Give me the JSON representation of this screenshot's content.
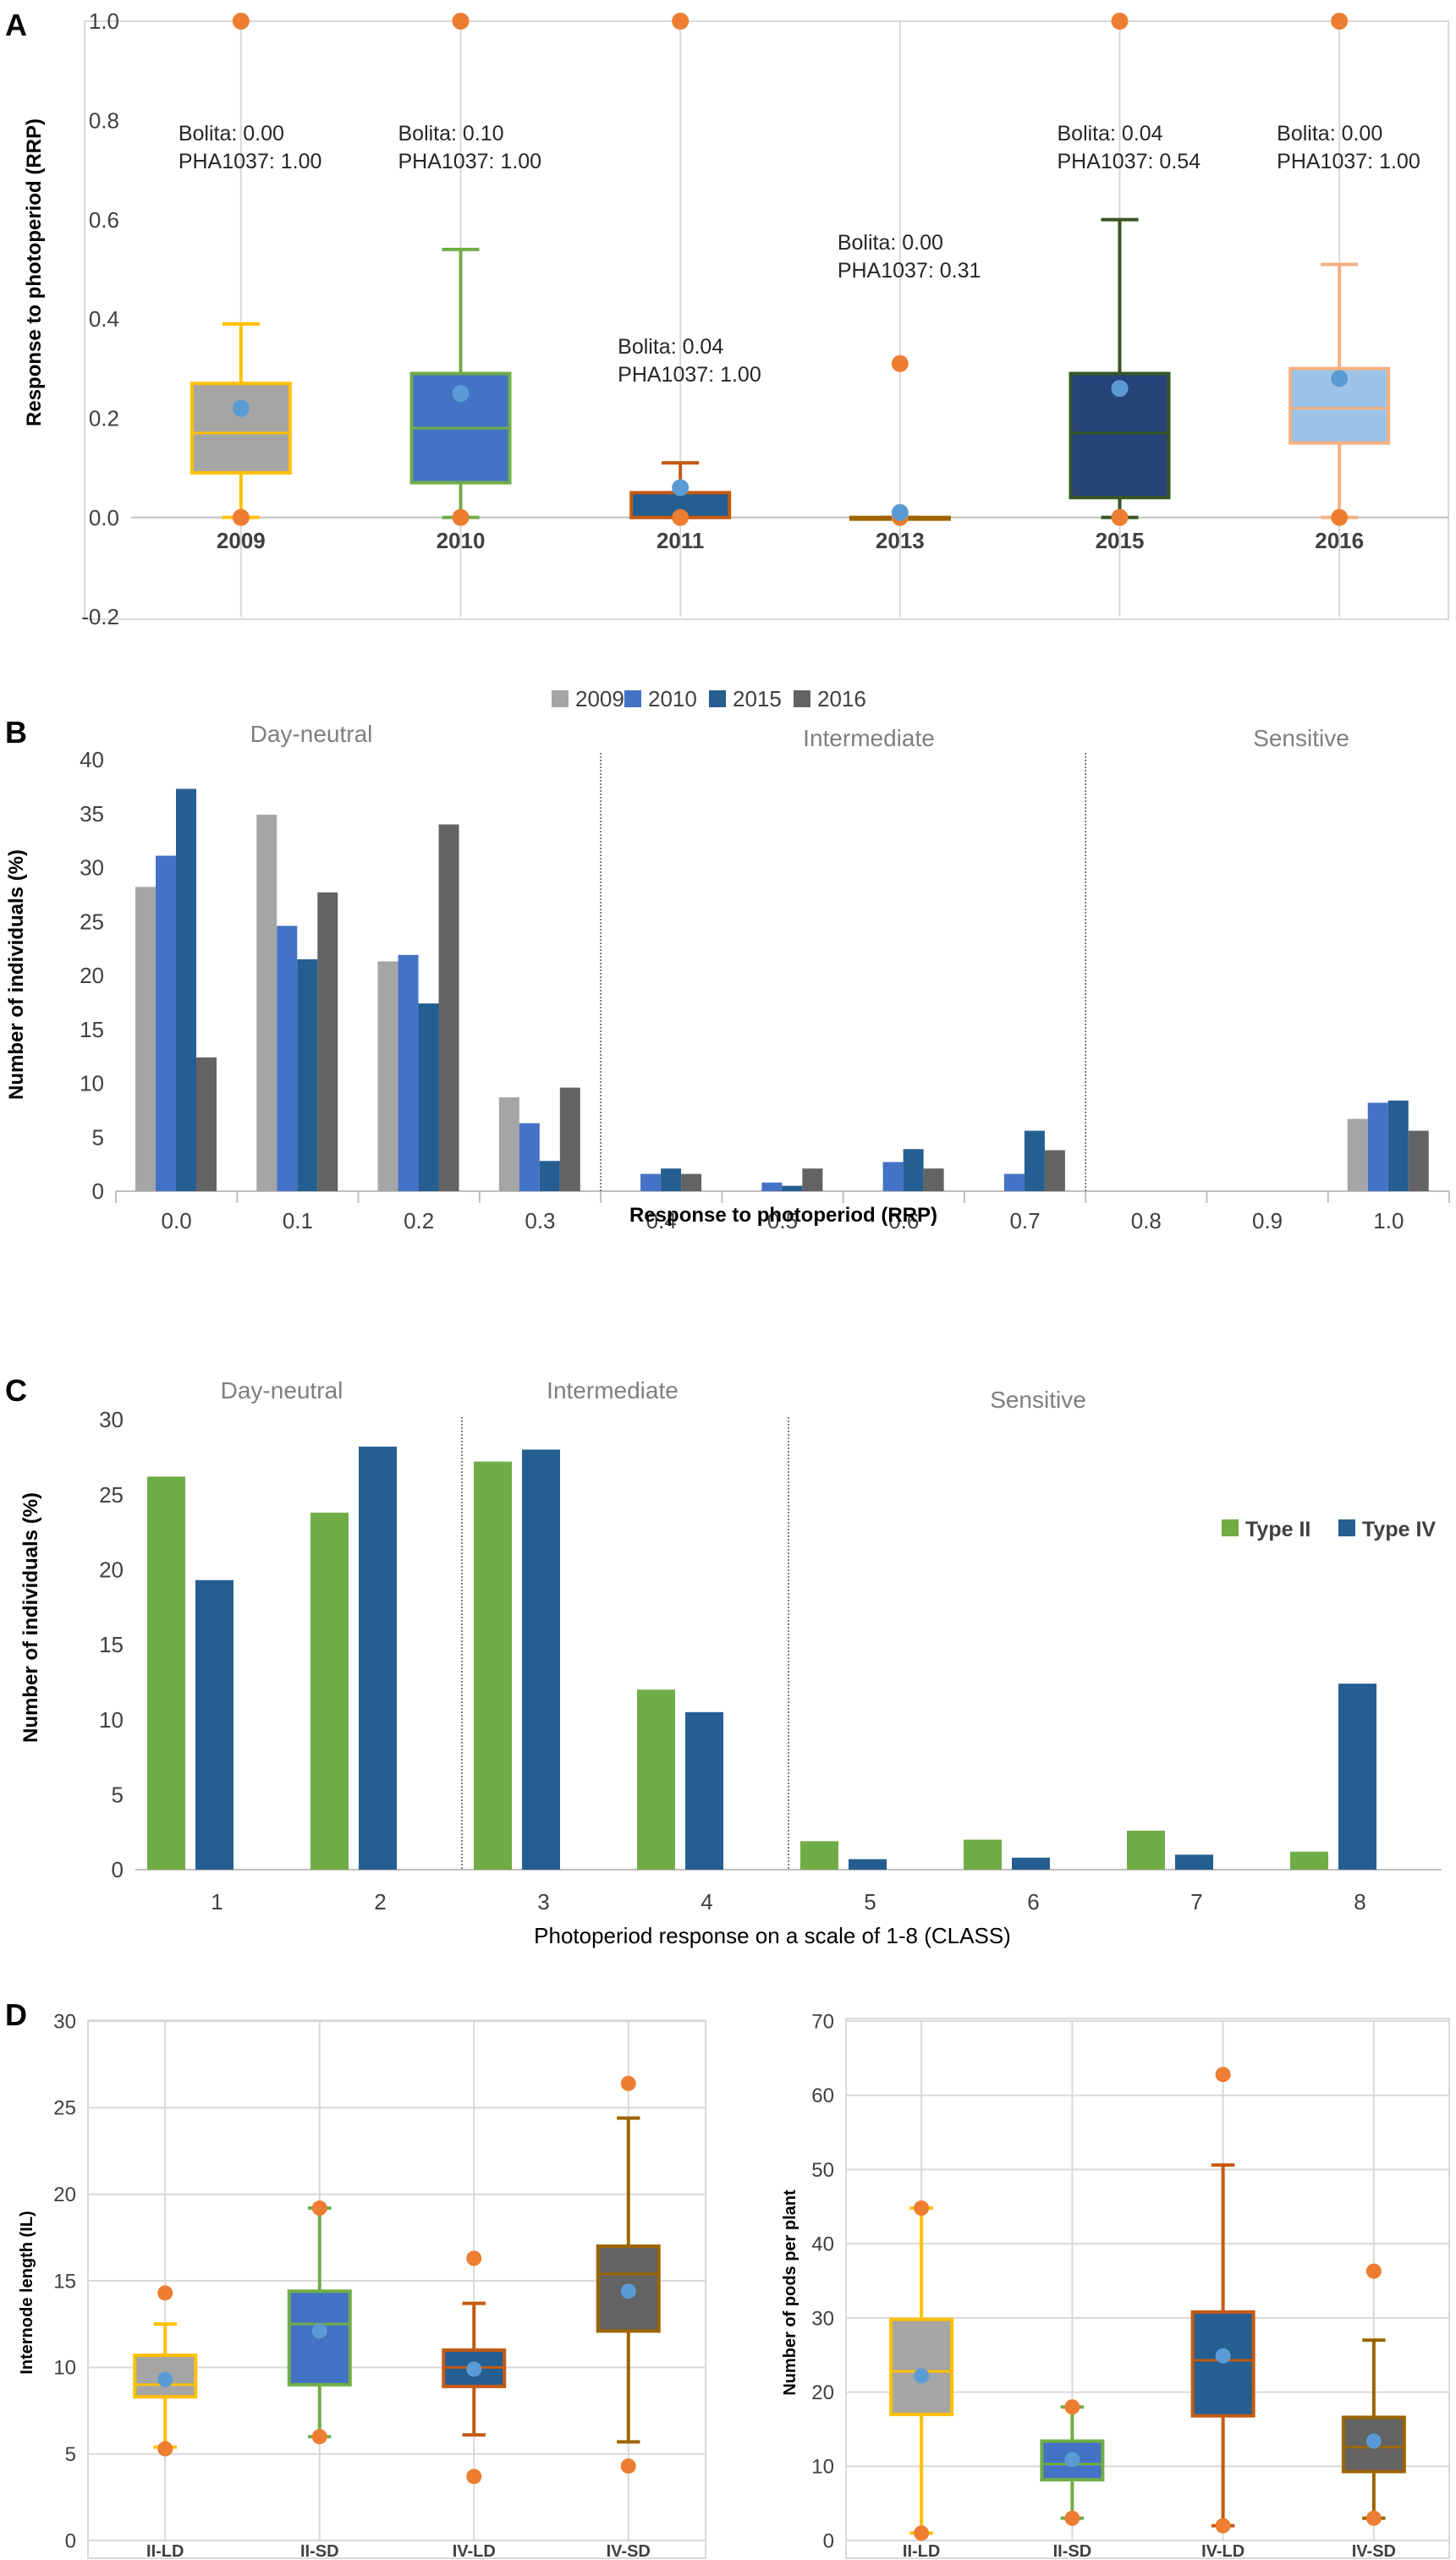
{
  "chart_data": [
    {
      "panel": "A",
      "type": "box",
      "ylabel": "Response to photoperiod (RRP)",
      "ylim": [
        -0.2,
        1.0
      ],
      "yticks": [
        -0.2,
        0.0,
        0.2,
        0.4,
        0.6,
        0.8,
        1.0
      ],
      "ytick_labels": [
        "-0.2",
        "0.0",
        "0.2",
        "0.4",
        "0.6",
        "0.8",
        "1.0"
      ],
      "categories": [
        "2009",
        "2010",
        "2011",
        "2013",
        "2015",
        "2016"
      ],
      "boxes": [
        {
          "label": "2009",
          "min": 0.0,
          "q1": 0.09,
          "median": 0.17,
          "q3": 0.27,
          "max": 0.39,
          "mean": 0.22,
          "outliers": [
            1.0,
            0.0
          ],
          "fill": "#a5a5a5",
          "edge": "#ffc000"
        },
        {
          "label": "2010",
          "min": 0.0,
          "q1": 0.07,
          "median": 0.18,
          "q3": 0.29,
          "max": 0.54,
          "mean": 0.25,
          "outliers": [
            1.0,
            0.0
          ],
          "fill": "#4472c4",
          "edge": "#70ad47"
        },
        {
          "label": "2011",
          "min": 0.0,
          "q1": 0.0,
          "median": 0.0,
          "q3": 0.05,
          "max": 0.11,
          "mean": 0.06,
          "outliers": [
            1.0,
            0.0
          ],
          "fill": "#255e91",
          "edge": "#c55a11"
        },
        {
          "label": "2013",
          "min": 0.0,
          "q1": 0.0,
          "median": 0.0,
          "q3": 0.0,
          "max": 0.0,
          "mean": 0.01,
          "outliers": [
            0.31,
            0.0
          ],
          "fill": "#255e91",
          "edge": "#9c6500"
        },
        {
          "label": "2015",
          "min": 0.0,
          "q1": 0.04,
          "median": 0.17,
          "q3": 0.29,
          "max": 0.6,
          "mean": 0.26,
          "outliers": [
            1.0,
            0.0
          ],
          "fill": "#264478",
          "edge": "#375623"
        },
        {
          "label": "2016",
          "min": 0.0,
          "q1": 0.15,
          "median": 0.22,
          "q3": 0.3,
          "max": 0.51,
          "mean": 0.28,
          "outliers": [
            1.0,
            0.0
          ],
          "fill": "#9dc3e6",
          "edge": "#f4b183"
        }
      ],
      "annotations": [
        {
          "cat": "2009",
          "lines": [
            "Bolita: 0.00",
            "PHA1037: 1.00"
          ],
          "y": 0.76
        },
        {
          "cat": "2010",
          "lines": [
            "Bolita: 0.10",
            "PHA1037: 1.00"
          ],
          "y": 0.76
        },
        {
          "cat": "2011",
          "lines": [
            "Bolita: 0.04",
            "PHA1037: 1.00"
          ],
          "y": 0.33
        },
        {
          "cat": "2013",
          "lines": [
            "Bolita: 0.00",
            "PHA1037: 0.31"
          ],
          "y": 0.54
        },
        {
          "cat": "2015",
          "lines": [
            "Bolita: 0.04",
            "PHA1037: 0.54"
          ],
          "y": 0.76
        },
        {
          "cat": "2016",
          "lines": [
            "Bolita: 0.00",
            "PHA1037: 1.00"
          ],
          "y": 0.76
        }
      ]
    },
    {
      "panel": "B",
      "type": "bar",
      "xlabel": "Response to photoperiod (RRP)",
      "ylabel": "Number of individuals (%)",
      "ylim": [
        0,
        40
      ],
      "yticks": [
        0,
        5,
        10,
        15,
        20,
        25,
        30,
        35,
        40
      ],
      "categories": [
        "0.0",
        "0.1",
        "0.2",
        "0.3",
        "0.4",
        "0.5",
        "0.6",
        "0.7",
        "0.8",
        "0.9",
        "1.0"
      ],
      "series": [
        {
          "name": "2009",
          "color": "#a5a5a5",
          "values": [
            28.2,
            34.9,
            21.3,
            8.7,
            0,
            0,
            0,
            0,
            0,
            0,
            6.7
          ]
        },
        {
          "name": "2010",
          "color": "#4472c4",
          "values": [
            31.1,
            24.6,
            21.9,
            6.3,
            1.6,
            0.8,
            2.7,
            1.6,
            0,
            0,
            8.2
          ]
        },
        {
          "name": "2015",
          "color": "#255e91",
          "values": [
            37.3,
            21.5,
            17.4,
            2.8,
            2.1,
            0.5,
            3.9,
            5.6,
            0,
            0,
            8.4
          ]
        },
        {
          "name": "2016",
          "color": "#636363",
          "values": [
            12.4,
            27.7,
            34.0,
            9.6,
            1.6,
            2.1,
            2.1,
            3.8,
            0,
            0,
            5.6
          ]
        }
      ],
      "regions": [
        "Day-neutral",
        "Intermediate",
        "Sensitive"
      ],
      "separators_after": [
        3,
        7
      ],
      "legend": "top"
    },
    {
      "panel": "C",
      "type": "bar",
      "xlabel": "Photoperiod response on a scale of 1-8 (CLASS)",
      "ylabel": "Number of  individuals (%)",
      "ylim": [
        0,
        30
      ],
      "yticks": [
        0,
        5,
        10,
        15,
        20,
        25,
        30
      ],
      "categories": [
        "1",
        "2",
        "3",
        "4",
        "5",
        "6",
        "7",
        "8"
      ],
      "series": [
        {
          "name": "Type II",
          "color": "#70ad47",
          "values": [
            26.2,
            23.8,
            27.2,
            12.0,
            1.9,
            2.0,
            2.6,
            1.2
          ]
        },
        {
          "name": "Type IV",
          "color": "#255e91",
          "values": [
            19.3,
            28.2,
            28.0,
            10.5,
            0.7,
            0.8,
            1.0,
            12.4
          ]
        }
      ],
      "regions": [
        "Day-neutral",
        "Intermediate",
        "Sensitive"
      ],
      "separators_after": [
        1,
        3
      ],
      "legend": "right"
    },
    {
      "panel": "D-left",
      "type": "box",
      "ylabel": "Internode length (IL)",
      "ylim": [
        0,
        30
      ],
      "yticks": [
        0,
        5,
        10,
        15,
        20,
        25,
        30
      ],
      "categories": [
        "II-LD",
        "II-SD",
        "IV-LD",
        "IV-SD"
      ],
      "boxes": [
        {
          "label": "II-LD",
          "min": 5.4,
          "q1": 8.3,
          "median": 9.0,
          "q3": 10.7,
          "max": 12.5,
          "mean": 9.3,
          "outliers": [
            14.3,
            5.3
          ],
          "fill": "#a5a5a5",
          "edge": "#ffc000"
        },
        {
          "label": "II-SD",
          "min": 6.0,
          "q1": 9.0,
          "median": 12.5,
          "q3": 14.4,
          "max": 19.2,
          "mean": 12.1,
          "outliers": [
            19.2,
            6.0
          ],
          "fill": "#4472c4",
          "edge": "#70ad47"
        },
        {
          "label": "IV-LD",
          "min": 6.1,
          "q1": 8.9,
          "median": 10.0,
          "q3": 11.0,
          "max": 13.7,
          "mean": 9.9,
          "outliers": [
            16.3,
            3.7
          ],
          "fill": "#255e91",
          "edge": "#c55a11"
        },
        {
          "label": "IV-SD",
          "min": 5.7,
          "q1": 12.1,
          "median": 15.4,
          "q3": 17.0,
          "max": 24.4,
          "mean": 14.4,
          "outliers": [
            26.4,
            4.3
          ],
          "fill": "#636363",
          "edge": "#9c6500"
        }
      ]
    },
    {
      "panel": "D-right",
      "type": "box",
      "ylabel": "Number of pods per plant",
      "ylim": [
        0,
        70
      ],
      "yticks": [
        0,
        10,
        20,
        30,
        40,
        50,
        60,
        70
      ],
      "categories": [
        "II-LD",
        "II-SD",
        "IV-LD",
        "IV-SD"
      ],
      "boxes": [
        {
          "label": "II-LD",
          "min": 1.0,
          "q1": 17.0,
          "median": 22.8,
          "q3": 29.8,
          "max": 44.8,
          "mean": 22.2,
          "outliers": [
            44.8,
            1.0
          ],
          "fill": "#a5a5a5",
          "edge": "#ffc000"
        },
        {
          "label": "II-SD",
          "min": 3.0,
          "q1": 8.2,
          "median": 10.3,
          "q3": 13.4,
          "max": 18.0,
          "mean": 10.9,
          "outliers": [
            18.0,
            3.0
          ],
          "fill": "#4472c4",
          "edge": "#70ad47"
        },
        {
          "label": "IV-LD",
          "min": 2.0,
          "q1": 16.8,
          "median": 24.3,
          "q3": 30.8,
          "max": 50.6,
          "mean": 24.9,
          "outliers": [
            62.8,
            2.0
          ],
          "fill": "#255e91",
          "edge": "#c55a11"
        },
        {
          "label": "IV-SD",
          "min": 3.0,
          "q1": 9.3,
          "median": 12.6,
          "q3": 16.6,
          "max": 27.0,
          "mean": 13.4,
          "outliers": [
            36.3,
            3.0
          ],
          "fill": "#636363",
          "edge": "#9c6500"
        }
      ]
    }
  ],
  "panel_labels": [
    "A",
    "B",
    "C",
    "D"
  ],
  "colors": {
    "outlier": "#ed7d31",
    "mean": "#5b9bd5",
    "grid": "#d9d9d9",
    "axis": "#bfbfbf",
    "text": "#404040",
    "region_text": "#7f7f7f"
  }
}
